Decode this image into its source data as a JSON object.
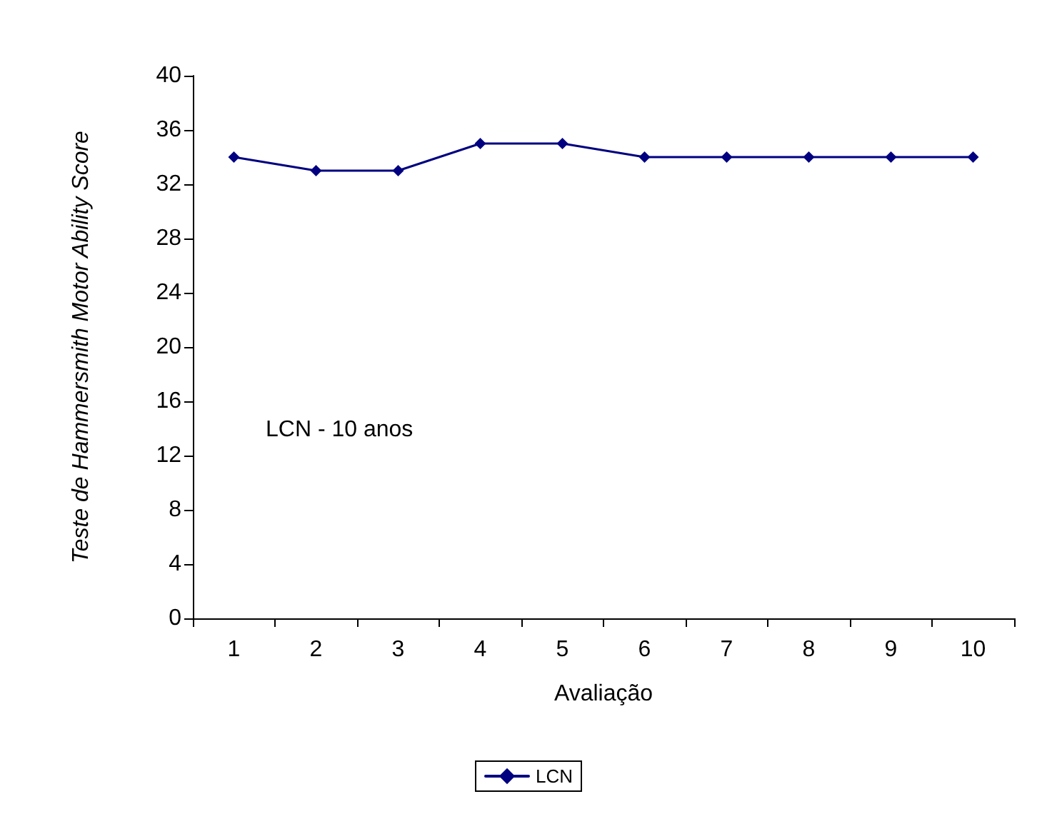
{
  "chart_data": {
    "type": "line",
    "xlabel": "Avaliação",
    "ylabel": "Teste de Hammersmith Motor Ability Score",
    "categories": [
      "1",
      "2",
      "3",
      "4",
      "5",
      "6",
      "7",
      "8",
      "9",
      "10"
    ],
    "series": [
      {
        "name": "LCN",
        "color": "#000080",
        "values": [
          34,
          33,
          33,
          35,
          35,
          34,
          34,
          34,
          34,
          34
        ]
      }
    ],
    "ylim": [
      0,
      40
    ],
    "yticks": [
      0,
      4,
      8,
      12,
      16,
      20,
      24,
      28,
      32,
      36,
      40
    ],
    "grid": false,
    "legend": "bottom",
    "marker": "diamond",
    "line_style": "solid",
    "annotations": [
      "LCN - 10 anos"
    ]
  }
}
